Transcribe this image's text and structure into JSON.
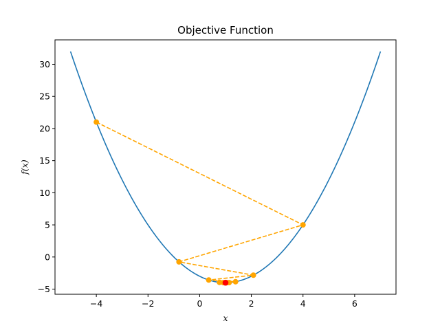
{
  "chart_data": {
    "type": "line",
    "title": "Objective Function",
    "xlabel": "x",
    "ylabel": "f(x)",
    "xlim": [
      -5.6,
      7.6
    ],
    "ylim": [
      -5.8,
      33.8
    ],
    "xticks": [
      -4,
      -2,
      0,
      2,
      4,
      6
    ],
    "yticks": [
      -5,
      0,
      5,
      10,
      15,
      20,
      25,
      30
    ],
    "grid": false,
    "series": [
      {
        "kind": "curve",
        "function": "(x-1)^2 - 4",
        "x_range": [
          -5,
          7
        ],
        "color": "#1f77b4"
      },
      {
        "kind": "iterates",
        "style": "dashed",
        "marker": "circle",
        "color": "#ffa500",
        "x": [
          -4,
          4,
          -0.8,
          2.08,
          0.352,
          1.389,
          0.767,
          1.14,
          0.916,
          1.05
        ],
        "y": [
          21,
          5,
          -0.76,
          -2.83,
          -3.58,
          -3.85,
          -3.95,
          -3.98,
          -3.99,
          -4.0
        ]
      },
      {
        "kind": "minimum",
        "marker": "circle",
        "color": "#ff0000",
        "x": [
          1
        ],
        "y": [
          -4
        ]
      }
    ]
  }
}
